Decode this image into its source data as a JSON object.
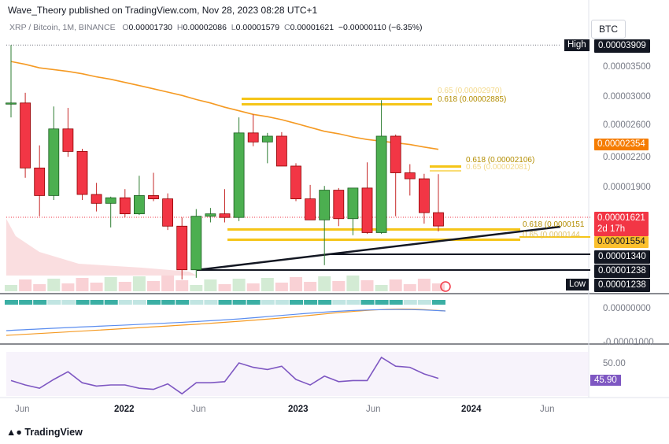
{
  "header": {
    "published": "Wave_Theory published on TradingView.com, Nov 28, 2023 08:28 UTC+1"
  },
  "symbol_info": {
    "title": "XRP / Bitcoin, 1M, BINANCE",
    "o_label": "O",
    "o": "0.00001730",
    "h_label": "H",
    "h": "0.00002086",
    "l_label": "L",
    "l": "0.00001579",
    "c_label": "C",
    "c": "0.00001621",
    "change": "−0.00000110 (−6.35%)"
  },
  "currency_button": "BTC",
  "price_tags": {
    "high_label": "High",
    "high": "0.00003909",
    "last": "0.00001621",
    "countdown": "2d 17h",
    "ma": "0.00002354",
    "fib_level": "0.00001554",
    "support1": "0.00001340",
    "support2": "0.00001238",
    "low_label": "Low",
    "low": "0.00001238"
  },
  "fib_labels": {
    "upper_618": "0.618 (0.00002885)",
    "upper_65": "0.65 (0.00002970)",
    "mid_618": "0.618 (0.00002106)",
    "mid_65": "0.65 (0.00002081)",
    "lower_618": "0.618 (0.0000151",
    "lower_65": "0.65 (0.0000144"
  },
  "y_axis": [
    "0.00003500",
    "0.00003000",
    "0.00002600",
    "0.00002200",
    "0.00001900"
  ],
  "macd_axis": [
    "0.00000000",
    "-0.00001000"
  ],
  "rsi_axis": "50.00",
  "rsi_value": "45.90",
  "x_axis": [
    {
      "label": "Jun",
      "bold": false
    },
    {
      "label": "2022",
      "bold": true
    },
    {
      "label": "Jun",
      "bold": false
    },
    {
      "label": "2023",
      "bold": true
    },
    {
      "label": "Jun",
      "bold": false
    },
    {
      "label": "2024",
      "bold": true
    },
    {
      "label": "Jun",
      "bold": false
    }
  ],
  "brand": "TradingView",
  "colors": {
    "up": "#22ab94",
    "up_fill": "#4caf50",
    "down": "#f23645",
    "ma": "#f59a23",
    "fib": "#f5c518",
    "rsi": "#7e57c2"
  },
  "chart_data": {
    "type": "candlestick",
    "price_range": [
      1.18e-05,
      4.02e-05
    ],
    "candles": [
      {
        "o": 2.95e-05,
        "h": 3.909e-05,
        "l": 2.75e-05,
        "c": 2.95e-05
      },
      {
        "o": 2.95e-05,
        "h": 3.1e-05,
        "l": 2.05e-05,
        "c": 2.15e-05
      },
      {
        "o": 2.15e-05,
        "h": 2.4e-05,
        "l": 1.7e-05,
        "c": 1.88e-05
      },
      {
        "o": 1.88e-05,
        "h": 2.9e-05,
        "l": 1.84e-05,
        "c": 2.6e-05
      },
      {
        "o": 2.6e-05,
        "h": 2.88e-05,
        "l": 2.27e-05,
        "c": 2.33e-05
      },
      {
        "o": 2.33e-05,
        "h": 2.36e-05,
        "l": 1.84e-05,
        "c": 1.89e-05
      },
      {
        "o": 1.89e-05,
        "h": 2e-05,
        "l": 1.74e-05,
        "c": 1.81e-05
      },
      {
        "o": 1.81e-05,
        "h": 1.87e-05,
        "l": 1.61e-05,
        "c": 1.86e-05
      },
      {
        "o": 1.86e-05,
        "h": 1.94e-05,
        "l": 1.69e-05,
        "c": 1.72e-05
      },
      {
        "o": 1.72e-05,
        "h": 2.07e-05,
        "l": 1.71e-05,
        "c": 1.88e-05
      },
      {
        "o": 1.88e-05,
        "h": 2.1e-05,
        "l": 1.83e-05,
        "c": 1.85e-05
      },
      {
        "o": 1.85e-05,
        "h": 1.9e-05,
        "l": 1.59e-05,
        "c": 1.62e-05
      },
      {
        "o": 1.62e-05,
        "h": 1.69e-05,
        "l": 1.25e-05,
        "c": 1.31e-05
      },
      {
        "o": 1.31e-05,
        "h": 1.76e-05,
        "l": 1.26e-05,
        "c": 1.7e-05
      },
      {
        "o": 1.7e-05,
        "h": 1.77e-05,
        "l": 1.65e-05,
        "c": 1.72e-05
      },
      {
        "o": 1.72e-05,
        "h": 1.94e-05,
        "l": 1.65e-05,
        "c": 1.69e-05
      },
      {
        "o": 1.69e-05,
        "h": 2.75e-05,
        "l": 1.66e-05,
        "c": 2.55e-05
      },
      {
        "o": 2.55e-05,
        "h": 2.79e-05,
        "l": 2.39e-05,
        "c": 2.44e-05
      },
      {
        "o": 2.44e-05,
        "h": 2.55e-05,
        "l": 2.2e-05,
        "c": 2.51e-05
      },
      {
        "o": 2.51e-05,
        "h": 2.56e-05,
        "l": 2.18e-05,
        "c": 2.17e-05
      },
      {
        "o": 2.17e-05,
        "h": 2.2e-05,
        "l": 1.83e-05,
        "c": 1.85e-05
      },
      {
        "o": 1.85e-05,
        "h": 1.98e-05,
        "l": 1.68e-05,
        "c": 1.67e-05
      },
      {
        "o": 1.67e-05,
        "h": 1.97e-05,
        "l": 1.34e-05,
        "c": 1.93e-05
      },
      {
        "o": 1.93e-05,
        "h": 1.95e-05,
        "l": 1.62e-05,
        "c": 1.68e-05
      },
      {
        "o": 1.68e-05,
        "h": 1.95e-05,
        "l": 1.55e-05,
        "c": 1.95e-05
      },
      {
        "o": 1.95e-05,
        "h": 2.21e-05,
        "l": 1.56e-05,
        "c": 1.57e-05
      },
      {
        "o": 1.57e-05,
        "h": 2.99e-05,
        "l": 1.56e-05,
        "c": 2.51e-05
      },
      {
        "o": 2.51e-05,
        "h": 2.53e-05,
        "l": 1.7e-05,
        "c": 2.1e-05
      },
      {
        "o": 2.1e-05,
        "h": 2.19e-05,
        "l": 1.88e-05,
        "c": 2.04e-05
      },
      {
        "o": 2.04e-05,
        "h": 2.09e-05,
        "l": 1.64e-05,
        "c": 1.73e-05
      },
      {
        "o": 1.73e-05,
        "h": 2.086e-05,
        "l": 1.579e-05,
        "c": 1.621e-05
      }
    ],
    "moving_average": [
      3.61e-05,
      3.56e-05,
      3.5e-05,
      3.47e-05,
      3.44e-05,
      3.4e-05,
      3.35e-05,
      3.31e-05,
      3.26e-05,
      3.21e-05,
      3.16e-05,
      3.11e-05,
      3.06e-05,
      3e-05,
      2.95e-05,
      2.89e-05,
      2.84e-05,
      2.79e-05,
      2.76e-05,
      2.72e-05,
      2.67e-05,
      2.62e-05,
      2.57e-05,
      2.54e-05,
      2.5e-05,
      2.47e-05,
      2.45e-05,
      2.43e-05,
      2.41e-05,
      2.38e-05,
      2.354e-05
    ],
    "fib_levels": [
      {
        "ratio": 0.618,
        "price": 2.885e-05
      },
      {
        "ratio": 0.65,
        "price": 2.97e-05
      },
      {
        "ratio": 0.618,
        "price": 2.106e-05
      },
      {
        "ratio": 0.65,
        "price": 2.081e-05
      },
      {
        "ratio": 0.618,
        "price": 1.51e-05
      },
      {
        "ratio": 0.65,
        "price": 1.44e-05
      }
    ],
    "horizontal_levels": [
      3.909e-05,
      1.34e-05,
      1.238e-05
    ],
    "rsi": [
      44,
      40,
      37,
      45,
      52,
      42,
      39,
      40,
      40,
      37,
      36,
      41,
      32,
      42,
      42,
      43,
      60,
      56,
      54,
      57,
      45,
      40,
      48,
      43,
      44,
      44,
      65,
      57,
      56,
      50,
      46
    ]
  }
}
